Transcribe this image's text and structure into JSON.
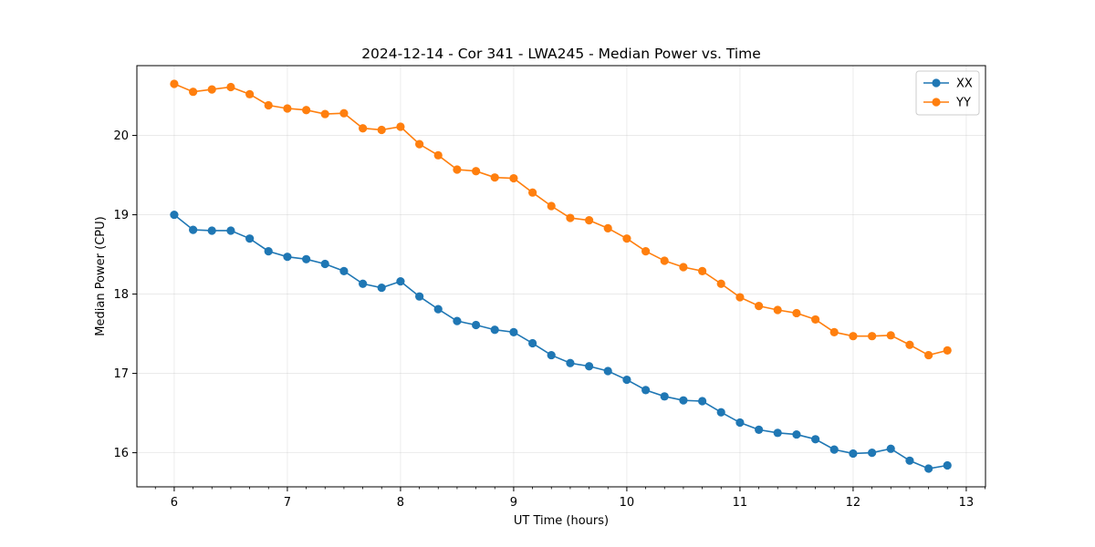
{
  "chart_data": {
    "type": "line",
    "title": "2024-12-14 - Cor 341 - LWA245 - Median Power vs. Time",
    "xlabel": "UT Time (hours)",
    "ylabel": "Median Power (CPU)",
    "xlim": [
      5.67,
      13.17
    ],
    "ylim": [
      15.57,
      20.88
    ],
    "xticks": [
      6,
      7,
      8,
      9,
      10,
      11,
      12,
      13
    ],
    "yticks": [
      16,
      17,
      18,
      19,
      20
    ],
    "grid": true,
    "legend_position": "top-right",
    "x": [
      6.0,
      6.167,
      6.333,
      6.5,
      6.667,
      6.833,
      7.0,
      7.167,
      7.333,
      7.5,
      7.667,
      7.833,
      8.0,
      8.167,
      8.333,
      8.5,
      8.667,
      8.833,
      9.0,
      9.167,
      9.333,
      9.5,
      9.667,
      9.833,
      10.0,
      10.167,
      10.333,
      10.5,
      10.667,
      10.833,
      11.0,
      11.167,
      11.333,
      11.5,
      11.667,
      11.833,
      12.0,
      12.167,
      12.333,
      12.5,
      12.667,
      12.833
    ],
    "series": [
      {
        "name": "XX",
        "color": "#1f77b4",
        "values": [
          19.0,
          18.81,
          18.8,
          18.8,
          18.7,
          18.54,
          18.47,
          18.44,
          18.38,
          18.29,
          18.13,
          18.08,
          18.16,
          17.97,
          17.81,
          17.66,
          17.61,
          17.55,
          17.52,
          17.38,
          17.23,
          17.13,
          17.09,
          17.03,
          16.92,
          16.79,
          16.71,
          16.66,
          16.65,
          16.51,
          16.38,
          16.29,
          16.25,
          16.23,
          16.17,
          16.04,
          15.99,
          16.0,
          16.05,
          15.9,
          15.8,
          15.84
        ]
      },
      {
        "name": "YY",
        "color": "#ff7f0e",
        "values": [
          20.65,
          20.55,
          20.58,
          20.61,
          20.52,
          20.38,
          20.34,
          20.32,
          20.27,
          20.28,
          20.09,
          20.07,
          20.11,
          19.89,
          19.75,
          19.57,
          19.55,
          19.47,
          19.46,
          19.28,
          19.11,
          18.96,
          18.93,
          18.83,
          18.7,
          18.54,
          18.42,
          18.34,
          18.29,
          18.13,
          17.96,
          17.85,
          17.8,
          17.76,
          17.68,
          17.52,
          17.47,
          17.47,
          17.48,
          17.36,
          17.23,
          17.29
        ]
      }
    ]
  }
}
